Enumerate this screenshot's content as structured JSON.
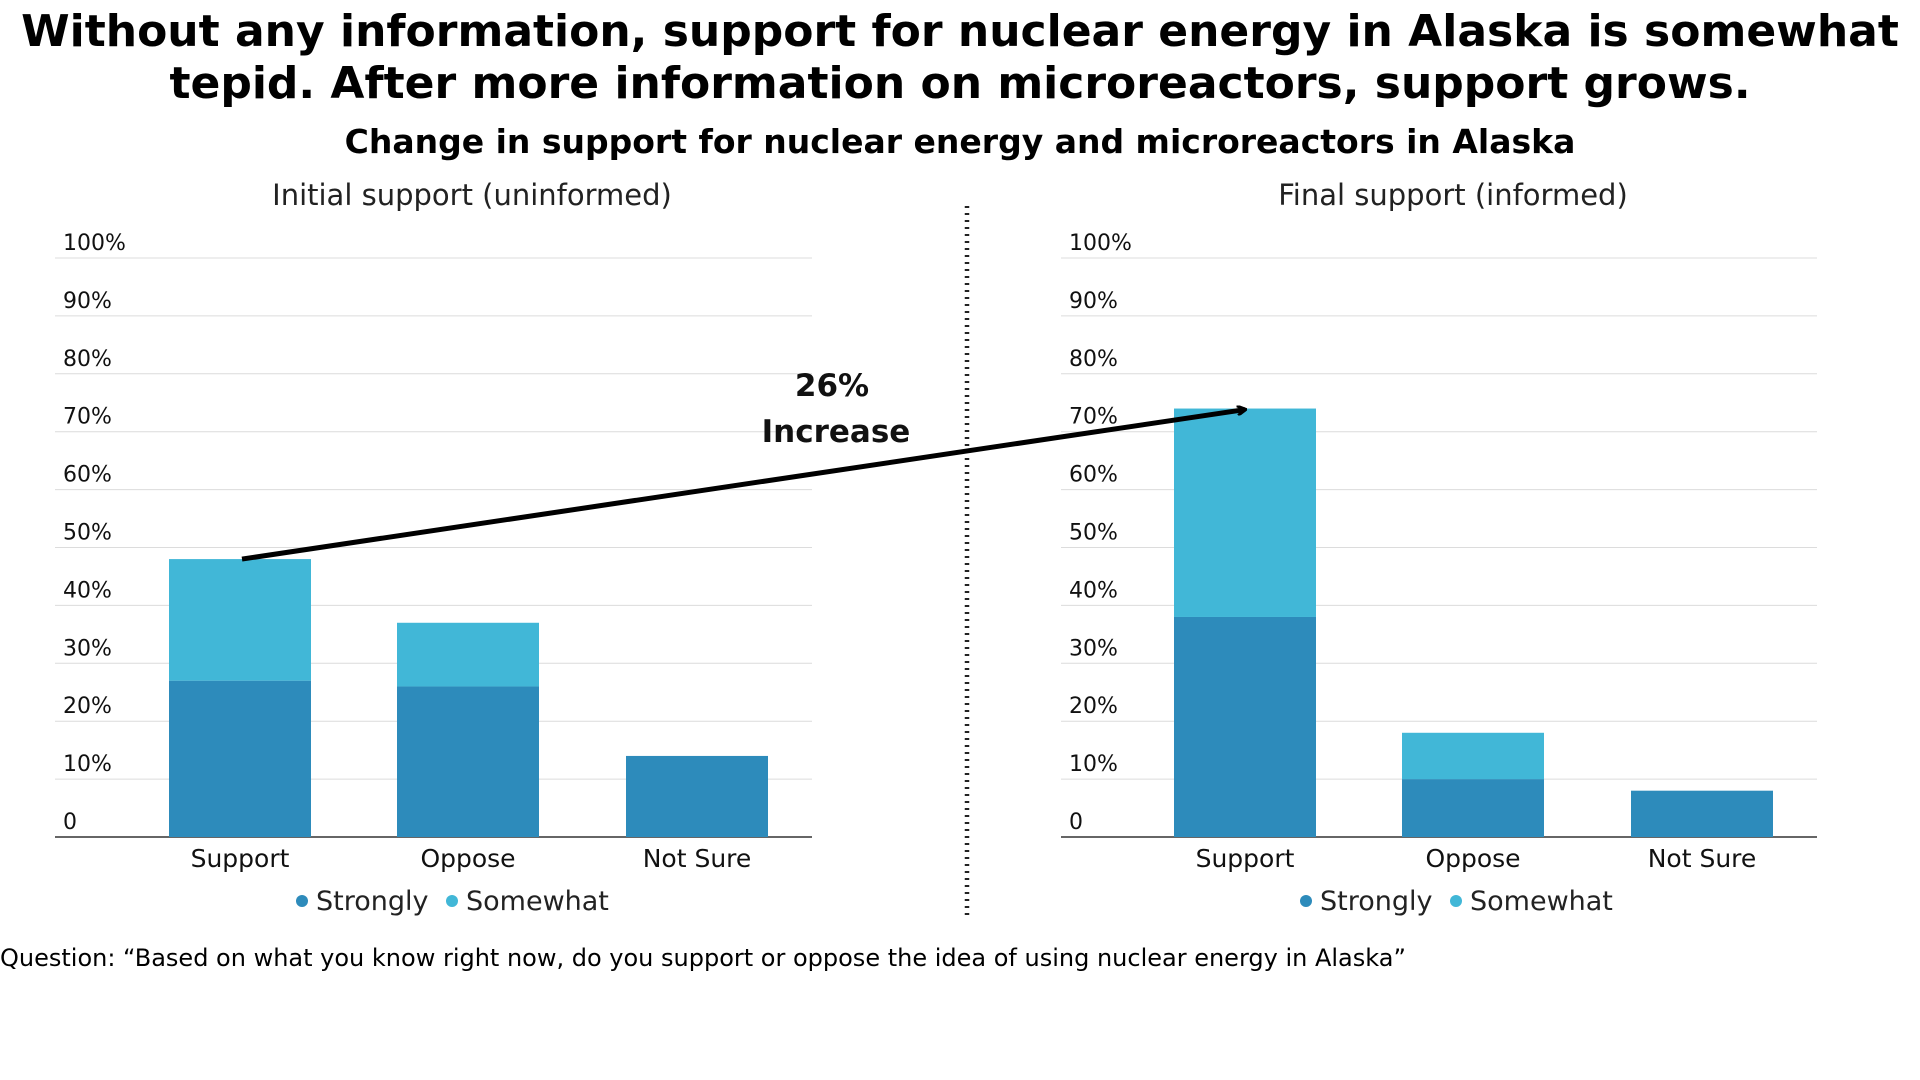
{
  "headline": "Without any information, support for nuclear energy in Alaska is somewhat tepid. After more information on microreactors, support grows.",
  "subtitle": "Change in support for nuclear energy and microreactors in Alaska",
  "footnote": "Question: “Based on what you know right now, do you support or oppose the idea of using nuclear energy in Alaska”",
  "colors": {
    "strongly": "#2d8bbb",
    "somewhat": "#41b7d7",
    "grid": "#dcdcdc",
    "axis": "#333333",
    "arrow": "#000000",
    "divider": "#222222"
  },
  "chart_data": [
    {
      "type": "bar",
      "stacked": true,
      "title": "Initial support (uninformed)",
      "categories": [
        "Support",
        "Oppose",
        "Not Sure"
      ],
      "series": [
        {
          "name": "Strongly",
          "values": [
            27,
            26,
            14
          ]
        },
        {
          "name": "Somewhat",
          "values": [
            21,
            11,
            0
          ]
        }
      ],
      "ylim": [
        0,
        100
      ],
      "yticks": [
        "0",
        "10%",
        "20%",
        "30%",
        "40%",
        "50%",
        "60%",
        "70%",
        "80%",
        "90%",
        "100%"
      ],
      "grid": true,
      "legend": "bottom"
    },
    {
      "type": "bar",
      "stacked": true,
      "title": "Final support (informed)",
      "categories": [
        "Support",
        "Oppose",
        "Not Sure"
      ],
      "series": [
        {
          "name": "Strongly",
          "values": [
            38,
            10,
            8
          ]
        },
        {
          "name": "Somewhat",
          "values": [
            36,
            8,
            0
          ]
        }
      ],
      "ylim": [
        0,
        100
      ],
      "yticks": [
        "0",
        "10%",
        "20%",
        "30%",
        "40%",
        "50%",
        "60%",
        "70%",
        "80%",
        "90%",
        "100%"
      ],
      "grid": true,
      "legend": "bottom"
    }
  ],
  "annotation": {
    "line1": "26%",
    "line2": "Increase",
    "from": {
      "panel": 0,
      "category": "Support",
      "value": 48
    },
    "to": {
      "panel": 1,
      "category": "Support",
      "value": 74
    }
  }
}
